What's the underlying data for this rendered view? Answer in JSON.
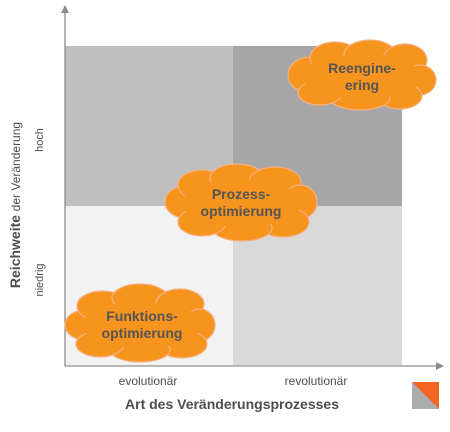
{
  "axes": {
    "y_title_bold": "Reichweite",
    "y_title_rest": "der Veränderung",
    "y_high": "hoch",
    "y_low": "niedrig",
    "x_left": "evolutionär",
    "x_right": "revolutionär",
    "x_title": "Art des Veränderungsprozesses"
  },
  "clouds": {
    "reengineering": "Reengine-\nering",
    "prozess": "Prozess-\noptimierung",
    "funktion": "Funktions-\noptimierung"
  },
  "colors": {
    "cloud_fill": "#f7941d",
    "quad_top_left": "#bfbfbf",
    "quad_top_right": "#a6a6a6",
    "quad_bottom_left": "#f2f2f2",
    "quad_bottom_right": "#d9d9d9",
    "axis": "#8c8c8c"
  }
}
